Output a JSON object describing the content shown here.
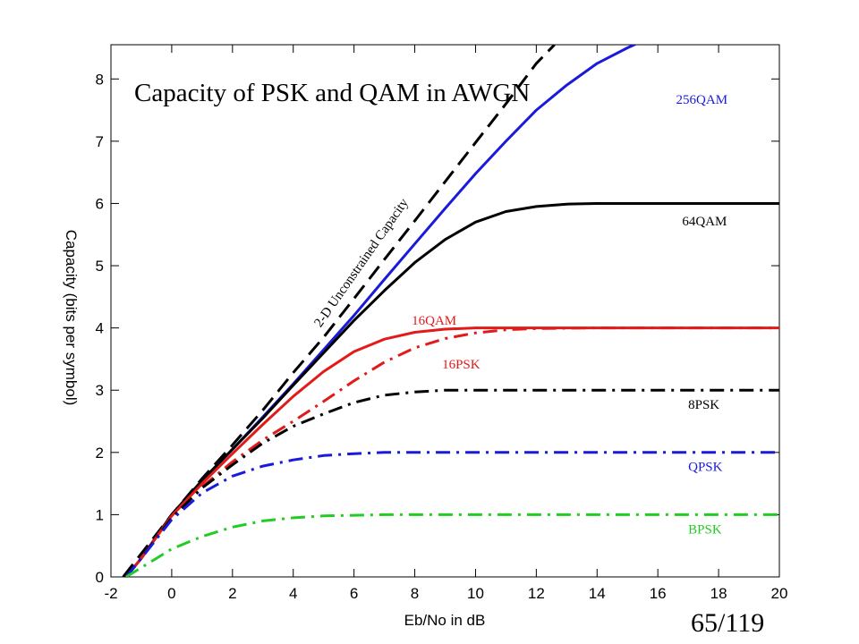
{
  "slide": {
    "page_number": "65/119"
  },
  "chart_data": {
    "type": "line",
    "title": "Capacity of PSK and QAM in AWGN",
    "xlabel": "Eb/No in dB",
    "ylabel": "Capacity (bits per symbol)",
    "xlim": [
      -2,
      20
    ],
    "ylim": [
      0,
      8.55
    ],
    "xticks": [
      -2,
      0,
      2,
      4,
      6,
      8,
      10,
      12,
      14,
      16,
      18,
      20
    ],
    "yticks": [
      0,
      1,
      2,
      3,
      4,
      5,
      6,
      7,
      8
    ],
    "grid": false,
    "legend": "none",
    "series": [
      {
        "name": "2-D Unconstrained Capacity",
        "color": "#000000",
        "dash": "dashed",
        "label_anchor": [
          4.9,
          4.0
        ],
        "label_angle": -55,
        "label_color": "#000000",
        "points": [
          [
            -1.6,
            0
          ],
          [
            -1.2,
            0.25
          ],
          [
            0,
            1.0
          ],
          [
            1,
            1.58
          ],
          [
            2,
            2.12
          ],
          [
            3,
            2.68
          ],
          [
            4,
            3.28
          ],
          [
            5,
            3.85
          ],
          [
            6,
            4.47
          ],
          [
            7,
            5.1
          ],
          [
            8,
            5.72
          ],
          [
            9,
            6.35
          ],
          [
            10,
            6.98
          ],
          [
            11,
            7.6
          ],
          [
            12,
            8.25
          ],
          [
            12.6,
            8.55
          ]
        ]
      },
      {
        "name": "256QAM",
        "color": "#1a1adb",
        "dash": "solid",
        "label_anchor": [
          16.6,
          7.6
        ],
        "label_color": "#1a1adb",
        "points": [
          [
            -1.5,
            0
          ],
          [
            -1,
            0.3
          ],
          [
            0,
            1.0
          ],
          [
            1,
            1.55
          ],
          [
            2,
            2.05
          ],
          [
            3,
            2.57
          ],
          [
            4,
            3.1
          ],
          [
            5,
            3.65
          ],
          [
            6,
            4.2
          ],
          [
            7,
            4.78
          ],
          [
            8,
            5.35
          ],
          [
            9,
            5.92
          ],
          [
            10,
            6.48
          ],
          [
            11,
            7.0
          ],
          [
            12,
            7.5
          ],
          [
            13,
            7.9
          ],
          [
            14,
            8.25
          ],
          [
            15,
            8.5
          ],
          [
            16,
            8.72
          ],
          [
            17,
            8.88
          ],
          [
            18,
            8.95
          ],
          [
            20,
            9.0
          ]
        ]
      },
      {
        "name": "64QAM",
        "color": "#000000",
        "dash": "solid",
        "label_anchor": [
          16.8,
          5.65
        ],
        "label_color": "#000000",
        "points": [
          [
            -1.5,
            0
          ],
          [
            -1,
            0.3
          ],
          [
            0,
            1.0
          ],
          [
            1,
            1.55
          ],
          [
            2,
            2.05
          ],
          [
            3,
            2.55
          ],
          [
            4,
            3.08
          ],
          [
            5,
            3.6
          ],
          [
            6,
            4.12
          ],
          [
            7,
            4.6
          ],
          [
            8,
            5.05
          ],
          [
            9,
            5.42
          ],
          [
            10,
            5.7
          ],
          [
            11,
            5.87
          ],
          [
            12,
            5.95
          ],
          [
            13,
            5.99
          ],
          [
            14,
            6.0
          ],
          [
            20,
            6.0
          ]
        ]
      },
      {
        "name": "16QAM",
        "color": "#e31a1a",
        "dash": "solid",
        "label_anchor": [
          7.9,
          4.05
        ],
        "label_color": "#e31a1a",
        "points": [
          [
            -1.5,
            0
          ],
          [
            -1,
            0.3
          ],
          [
            0,
            0.98
          ],
          [
            1,
            1.5
          ],
          [
            2,
            1.98
          ],
          [
            3,
            2.45
          ],
          [
            4,
            2.9
          ],
          [
            5,
            3.3
          ],
          [
            6,
            3.62
          ],
          [
            7,
            3.82
          ],
          [
            8,
            3.93
          ],
          [
            9,
            3.98
          ],
          [
            10,
            4.0
          ],
          [
            20,
            4.0
          ]
        ]
      },
      {
        "name": "16PSK",
        "color": "#e31a1a",
        "dash": "dashdot",
        "label_anchor": [
          8.9,
          3.35
        ],
        "label_color": "#e31a1a",
        "points": [
          [
            -1.5,
            0
          ],
          [
            -1,
            0.3
          ],
          [
            0,
            0.95
          ],
          [
            1,
            1.45
          ],
          [
            2,
            1.85
          ],
          [
            3,
            2.2
          ],
          [
            4,
            2.5
          ],
          [
            5,
            2.82
          ],
          [
            6,
            3.15
          ],
          [
            7,
            3.45
          ],
          [
            8,
            3.68
          ],
          [
            9,
            3.83
          ],
          [
            10,
            3.92
          ],
          [
            11,
            3.97
          ],
          [
            12,
            3.99
          ],
          [
            14,
            4.0
          ],
          [
            20,
            4.0
          ]
        ]
      },
      {
        "name": "8PSK",
        "color": "#000000",
        "dash": "dashdot",
        "label_anchor": [
          17.0,
          2.7
        ],
        "label_color": "#000000",
        "points": [
          [
            -1.5,
            0
          ],
          [
            -1,
            0.3
          ],
          [
            0,
            0.95
          ],
          [
            1,
            1.43
          ],
          [
            2,
            1.8
          ],
          [
            3,
            2.15
          ],
          [
            4,
            2.42
          ],
          [
            5,
            2.62
          ],
          [
            6,
            2.8
          ],
          [
            7,
            2.92
          ],
          [
            8,
            2.97
          ],
          [
            9,
            3.0
          ],
          [
            20,
            3.0
          ]
        ]
      },
      {
        "name": "QPSK",
        "color": "#1a1adb",
        "dash": "dashdot",
        "label_anchor": [
          17.0,
          1.7
        ],
        "label_color": "#1a1adb",
        "points": [
          [
            -1.5,
            0
          ],
          [
            -1,
            0.3
          ],
          [
            0,
            0.92
          ],
          [
            1,
            1.35
          ],
          [
            2,
            1.62
          ],
          [
            3,
            1.78
          ],
          [
            4,
            1.88
          ],
          [
            5,
            1.95
          ],
          [
            6,
            1.98
          ],
          [
            7,
            2.0
          ],
          [
            20,
            2.0
          ]
        ]
      },
      {
        "name": "BPSK",
        "color": "#22cc22",
        "dash": "dashdot",
        "label_anchor": [
          17.0,
          0.7
        ],
        "label_color": "#22cc22",
        "points": [
          [
            -1.5,
            0
          ],
          [
            -1,
            0.15
          ],
          [
            0,
            0.45
          ],
          [
            1,
            0.65
          ],
          [
            2,
            0.8
          ],
          [
            3,
            0.9
          ],
          [
            4,
            0.95
          ],
          [
            5,
            0.98
          ],
          [
            6,
            0.99
          ],
          [
            7,
            1.0
          ],
          [
            20,
            1.0
          ]
        ]
      }
    ]
  }
}
